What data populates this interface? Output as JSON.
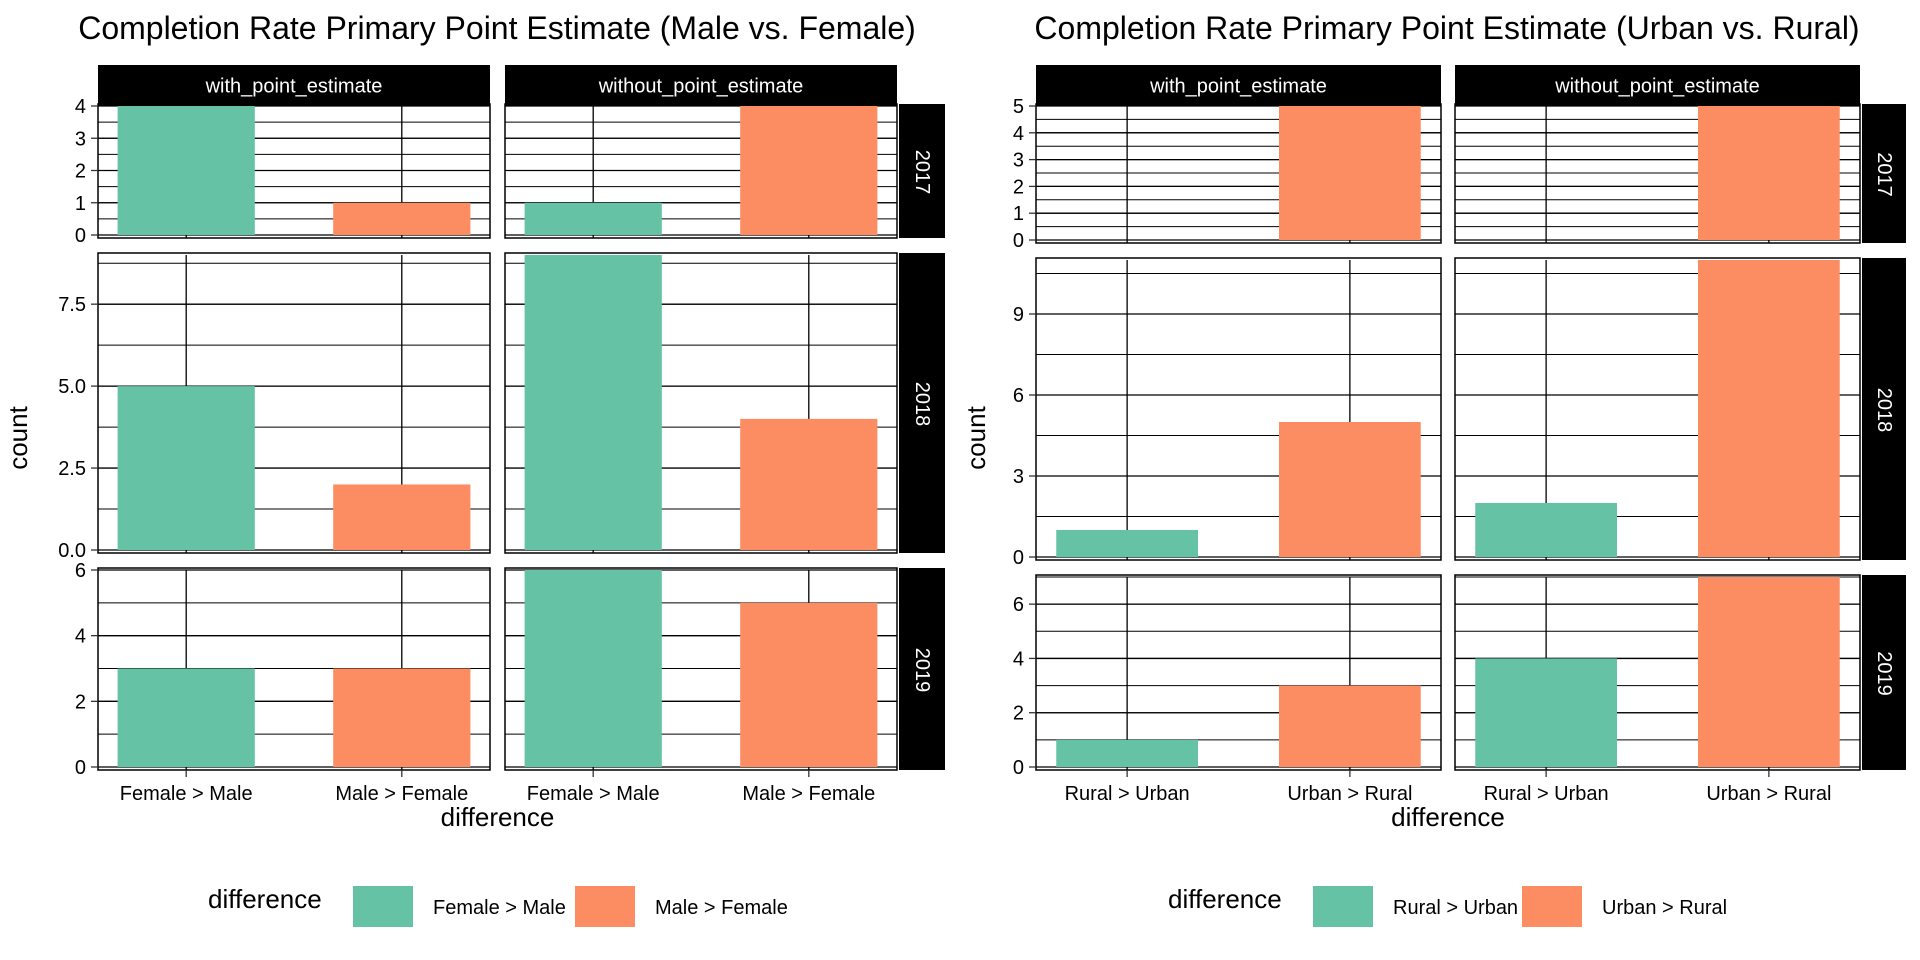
{
  "colors": {
    "female_gt_male": "#66c2a5",
    "male_gt_female": "#fc8d62",
    "grid": "#000000",
    "strip_bg": "#000000",
    "strip_text": "#ffffff"
  },
  "chart_data": [
    {
      "type": "bar",
      "title": "Completion Rate Primary Point Estimate (Male vs. Female)",
      "xlabel": "difference",
      "ylabel": "count",
      "legend": {
        "title": "difference",
        "position": "bottom",
        "entries": [
          "Female > Male",
          "Male > Female"
        ]
      },
      "categories": [
        "Female > Male",
        "Male > Female"
      ],
      "columns": [
        "with_point_estimate",
        "without_point_estimate"
      ],
      "rows": [
        {
          "label": "2017",
          "ylim": [
            0,
            4
          ],
          "yticks": [
            0,
            1,
            2,
            3,
            4
          ],
          "ytick_labels": [
            "0",
            "1",
            "2",
            "3",
            "4"
          ],
          "values": {
            "with_point_estimate": [
              4,
              1
            ],
            "without_point_estimate": [
              1,
              4
            ]
          }
        },
        {
          "label": "2018",
          "ylim": [
            0,
            9
          ],
          "yticks": [
            0,
            2.5,
            5,
            7.5
          ],
          "ytick_labels": [
            "0.0",
            "2.5",
            "5.0",
            "7.5"
          ],
          "values": {
            "with_point_estimate": [
              5,
              2
            ],
            "without_point_estimate": [
              9,
              4
            ]
          }
        },
        {
          "label": "2019",
          "ylim": [
            0,
            6
          ],
          "yticks": [
            0,
            2,
            4,
            6
          ],
          "ytick_labels": [
            "0",
            "2",
            "4",
            "6"
          ],
          "values": {
            "with_point_estimate": [
              3,
              3
            ],
            "without_point_estimate": [
              6,
              5
            ]
          }
        }
      ]
    },
    {
      "type": "bar",
      "title": "Completion Rate Primary Point Estimate (Urban vs. Rural)",
      "xlabel": "difference",
      "ylabel": "count",
      "legend": {
        "title": "difference",
        "position": "bottom",
        "entries": [
          "Rural > Urban",
          "Urban > Rural"
        ]
      },
      "categories": [
        "Rural > Urban",
        "Urban > Rural"
      ],
      "columns": [
        "with_point_estimate",
        "without_point_estimate"
      ],
      "rows": [
        {
          "label": "2017",
          "ylim": [
            0,
            5
          ],
          "yticks": [
            0,
            1,
            2,
            3,
            4,
            5
          ],
          "ytick_labels": [
            "0",
            "1",
            "2",
            "3",
            "4",
            "5"
          ],
          "values": {
            "with_point_estimate": [
              0,
              5
            ],
            "without_point_estimate": [
              0,
              5
            ]
          }
        },
        {
          "label": "2018",
          "ylim": [
            0,
            11
          ],
          "yticks": [
            0,
            3,
            6,
            9
          ],
          "ytick_labels": [
            "0",
            "3",
            "6",
            "9"
          ],
          "values": {
            "with_point_estimate": [
              1,
              5
            ],
            "without_point_estimate": [
              2,
              11
            ]
          }
        },
        {
          "label": "2019",
          "ylim": [
            0,
            7
          ],
          "yticks": [
            0,
            2,
            4,
            6
          ],
          "ytick_labels": [
            "0",
            "2",
            "4",
            "6"
          ],
          "values": {
            "with_point_estimate": [
              1,
              3
            ],
            "without_point_estimate": [
              4,
              7
            ]
          }
        }
      ]
    }
  ]
}
